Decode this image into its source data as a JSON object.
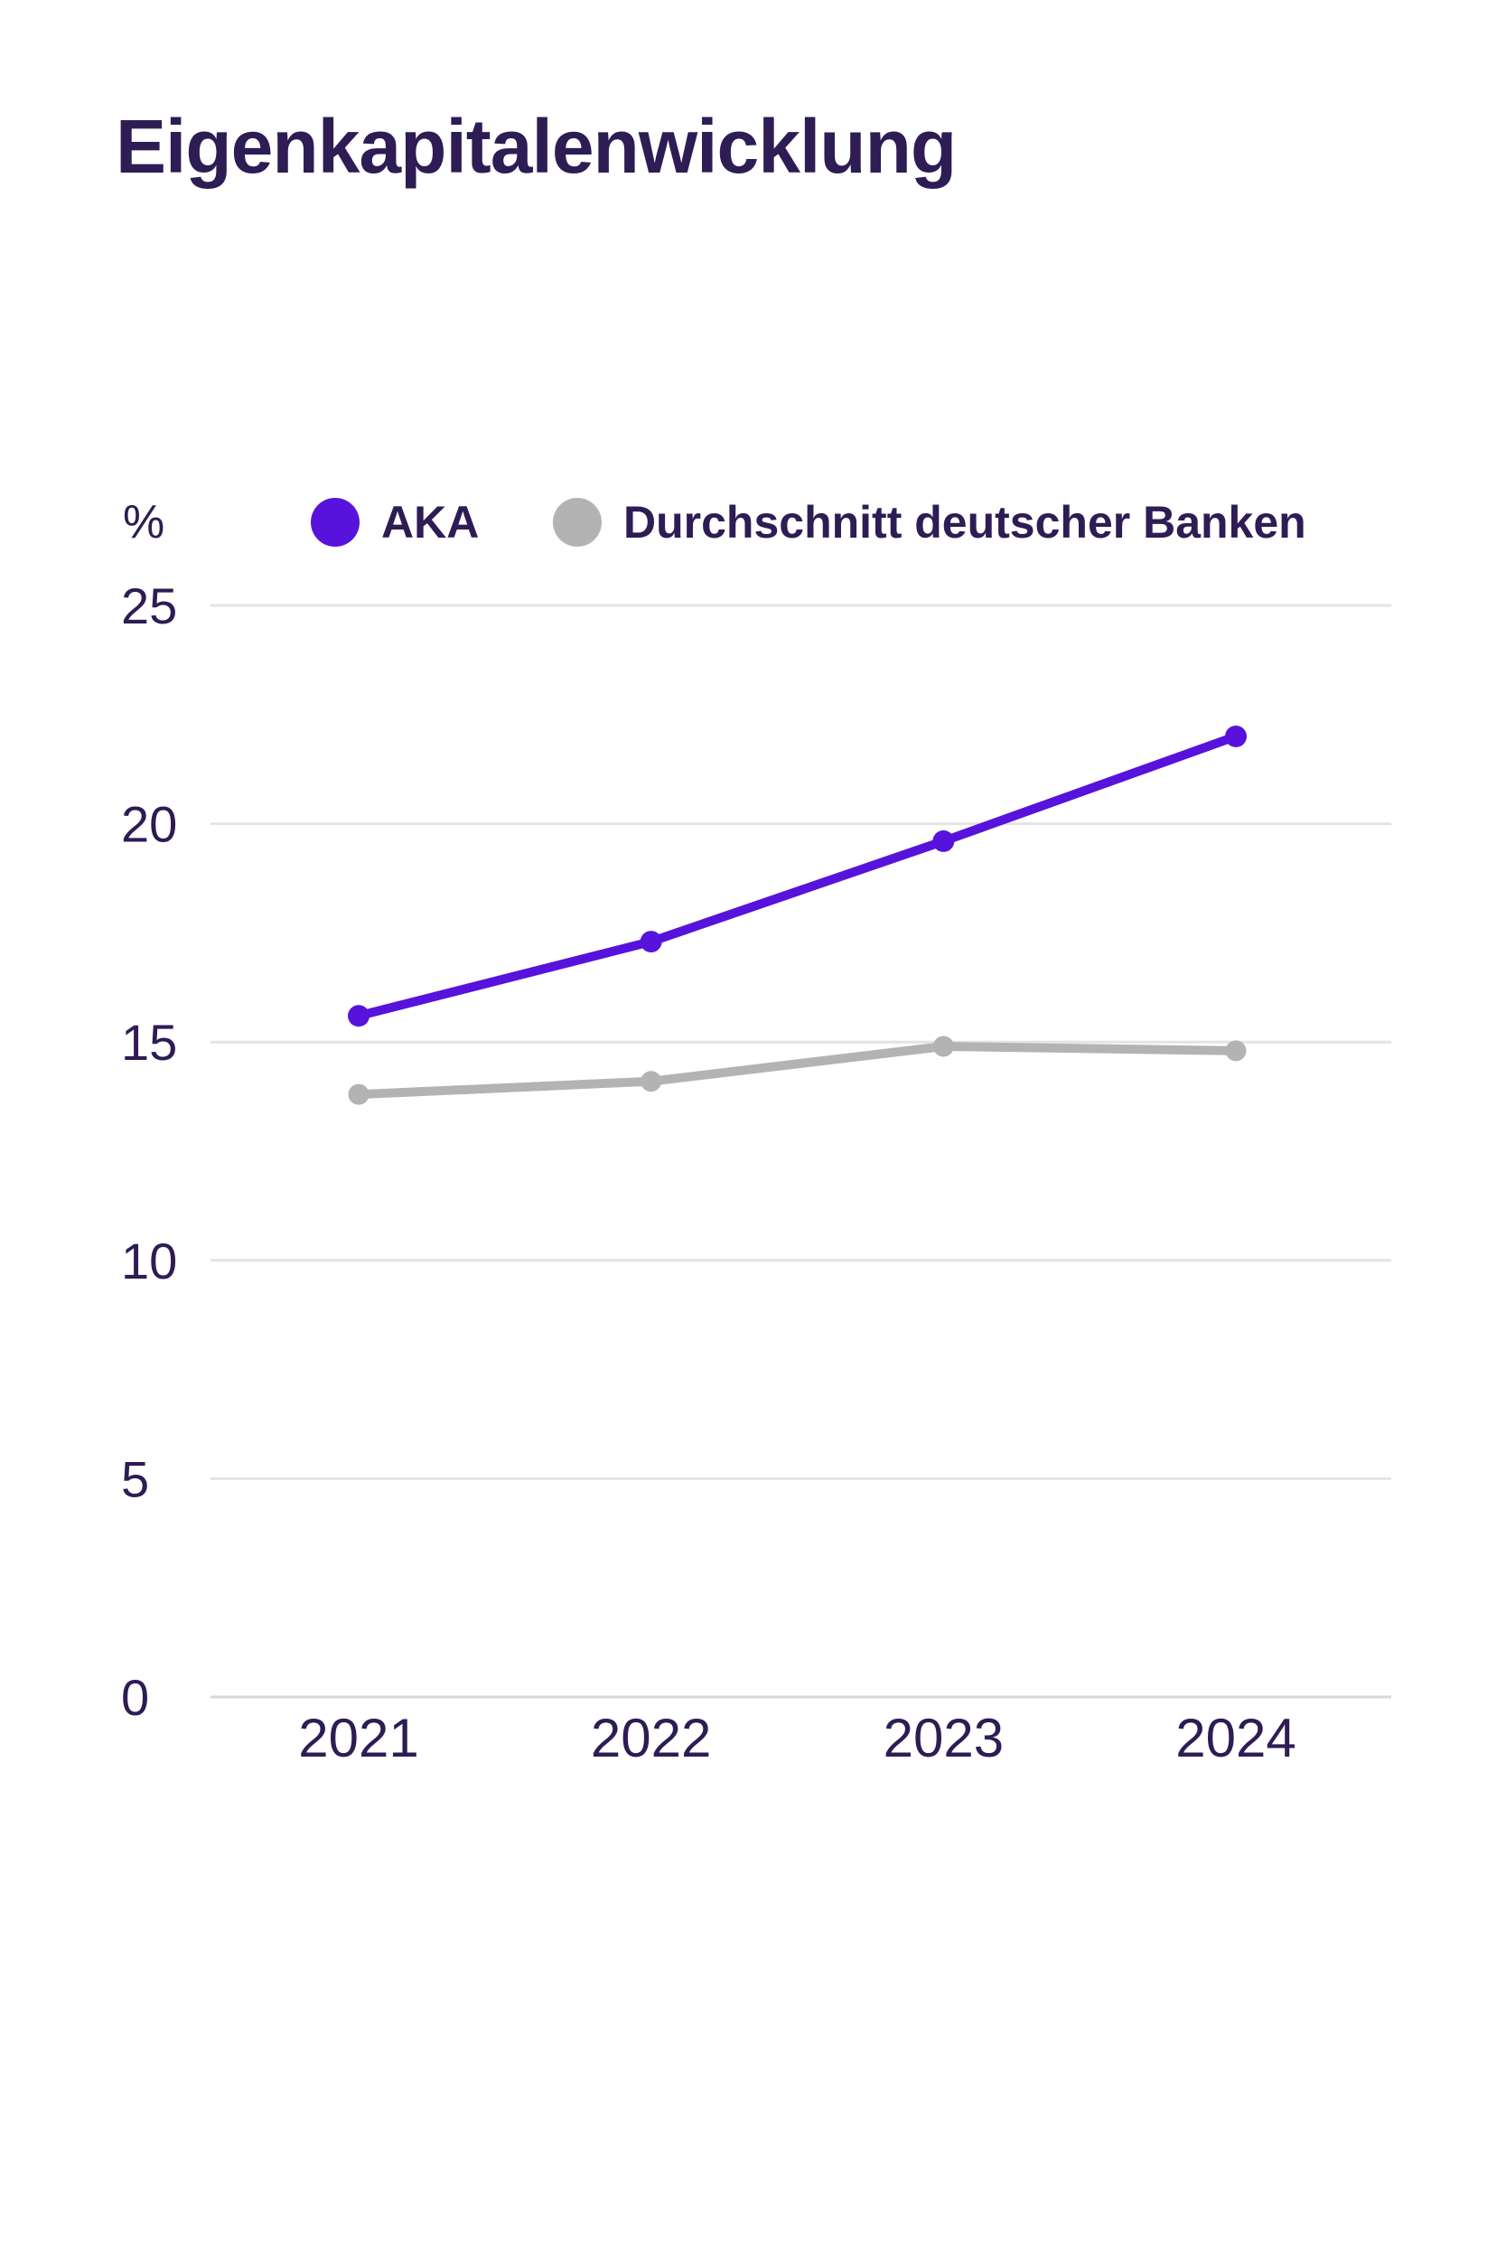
{
  "chart_data": {
    "type": "line",
    "title": "Eigenkapitalenwicklung",
    "unit_label": "%",
    "categories": [
      "2021",
      "2022",
      "2023",
      "2024"
    ],
    "series": [
      {
        "name": "AKA",
        "color": "#5713DC",
        "values": [
          15.6,
          17.3,
          19.6,
          22.0
        ]
      },
      {
        "name": "Durchschnitt deutscher Banken",
        "color": "#B3B3B3",
        "values": [
          13.8,
          14.1,
          14.9,
          14.8
        ]
      }
    ],
    "ylim": [
      0,
      25
    ],
    "yticks": [
      0,
      5,
      10,
      15,
      20,
      25
    ],
    "grid": true,
    "legend_position": "top",
    "colors": {
      "text": "#2E1C54",
      "gridline": "#E4E4E4",
      "axis_line": "#D7D7D7",
      "background": "#FFFFFF"
    }
  }
}
